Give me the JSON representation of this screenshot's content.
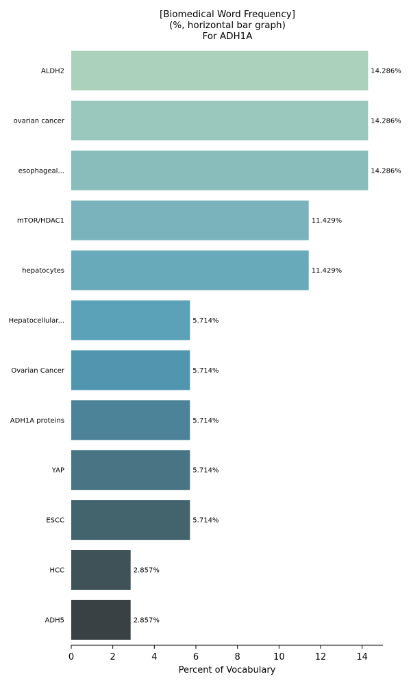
{
  "chart_data": {
    "type": "bar",
    "orientation": "horizontal",
    "title": "[Biomedical Word Frequency]\n(%, horizontal bar graph)\nFor ADH1A",
    "title_lines": [
      "[Biomedical Word Frequency]",
      "(%, horizontal bar graph)",
      "For ADH1A"
    ],
    "xlabel": "Percent of Vocabulary",
    "ylabel": "",
    "xlim": [
      0,
      15
    ],
    "xticks": [
      0,
      2,
      4,
      6,
      8,
      10,
      12,
      14
    ],
    "grid": false,
    "categories": [
      "ALDH2",
      "ovarian cancer",
      "esophageal...",
      "mTOR/HDAC1",
      "hepatocytes",
      "Hepatocellular...",
      "Ovarian Cancer",
      "ADH1A proteins",
      "YAP",
      "ESCC",
      "HCC",
      "ADH5"
    ],
    "values": [
      14.286,
      14.286,
      14.286,
      11.429,
      11.429,
      5.714,
      5.714,
      5.714,
      5.714,
      5.714,
      2.857,
      2.857
    ],
    "value_labels": [
      "14.286%",
      "14.286%",
      "14.286%",
      "11.429%",
      "11.429%",
      "5.714%",
      "5.714%",
      "5.714%",
      "5.714%",
      "5.714%",
      "2.857%",
      "2.857%"
    ],
    "colors": [
      "#abd1bc",
      "#9ac8bc",
      "#89bdbb",
      "#7ab3bb",
      "#69aaba",
      "#5ba2b9",
      "#5195af",
      "#4d8399",
      "#487483",
      "#43636d",
      "#3e5258",
      "#394144"
    ]
  }
}
